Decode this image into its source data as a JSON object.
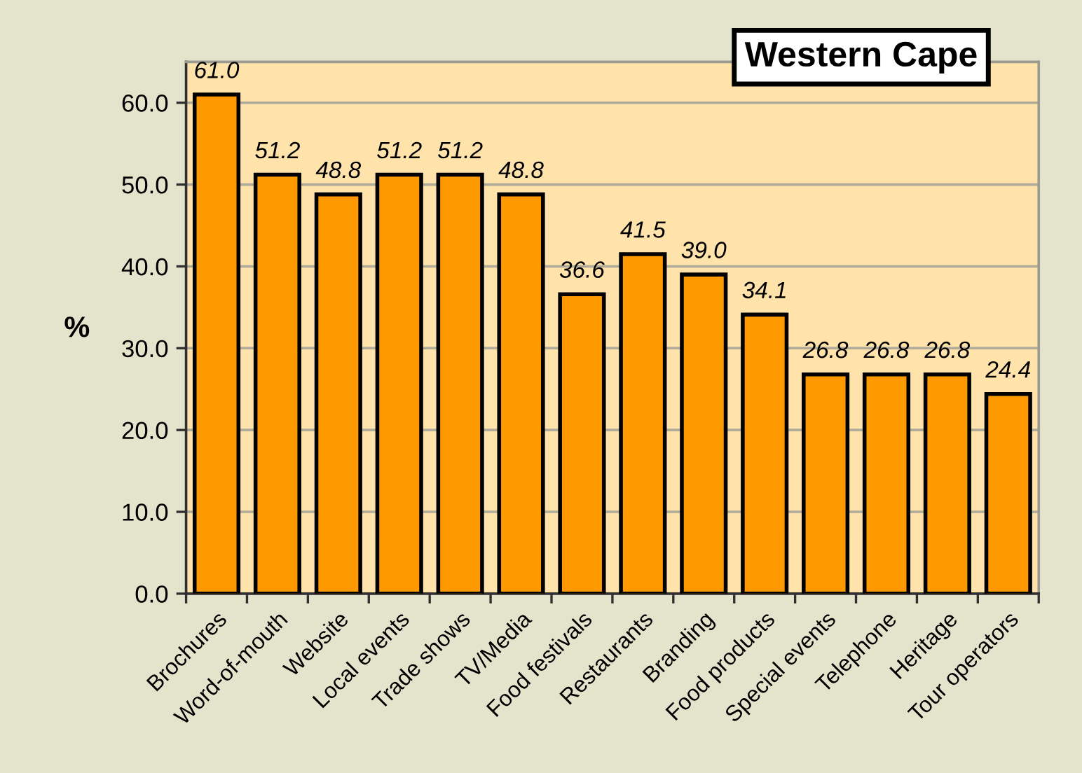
{
  "chart_data": {
    "type": "bar",
    "title": "Western Cape",
    "ylabel": "%",
    "categories": [
      "Brochures",
      "Word-of-mouth",
      "Website",
      "Local events",
      "Trade shows",
      "TV/Media",
      "Food festivals",
      "Restaurants",
      "Branding",
      "Food products",
      "Special events",
      "Telephone",
      "Heritage",
      "Tour operators"
    ],
    "values": [
      61.0,
      51.2,
      48.8,
      51.2,
      51.2,
      48.8,
      36.6,
      41.5,
      39.0,
      34.1,
      26.8,
      26.8,
      26.8,
      24.4
    ],
    "value_labels": [
      "61.0",
      "51.2",
      "48.8",
      "51.2",
      "51.2",
      "48.8",
      "36.6",
      "41.5",
      "39.0",
      "34.1",
      "26.8",
      "26.8",
      "26.8",
      "24.4"
    ],
    "color": "#ff9900",
    "ylim": [
      0,
      65
    ],
    "yticks": [
      {
        "value": 0,
        "label": "0.0"
      },
      {
        "value": 10,
        "label": "10.0"
      },
      {
        "value": 20,
        "label": "20.0"
      },
      {
        "value": 30,
        "label": "30.0"
      },
      {
        "value": 40,
        "label": "40.0"
      },
      {
        "value": 50,
        "label": "50.0"
      },
      {
        "value": 60,
        "label": "60.0"
      }
    ],
    "grid": "y"
  }
}
